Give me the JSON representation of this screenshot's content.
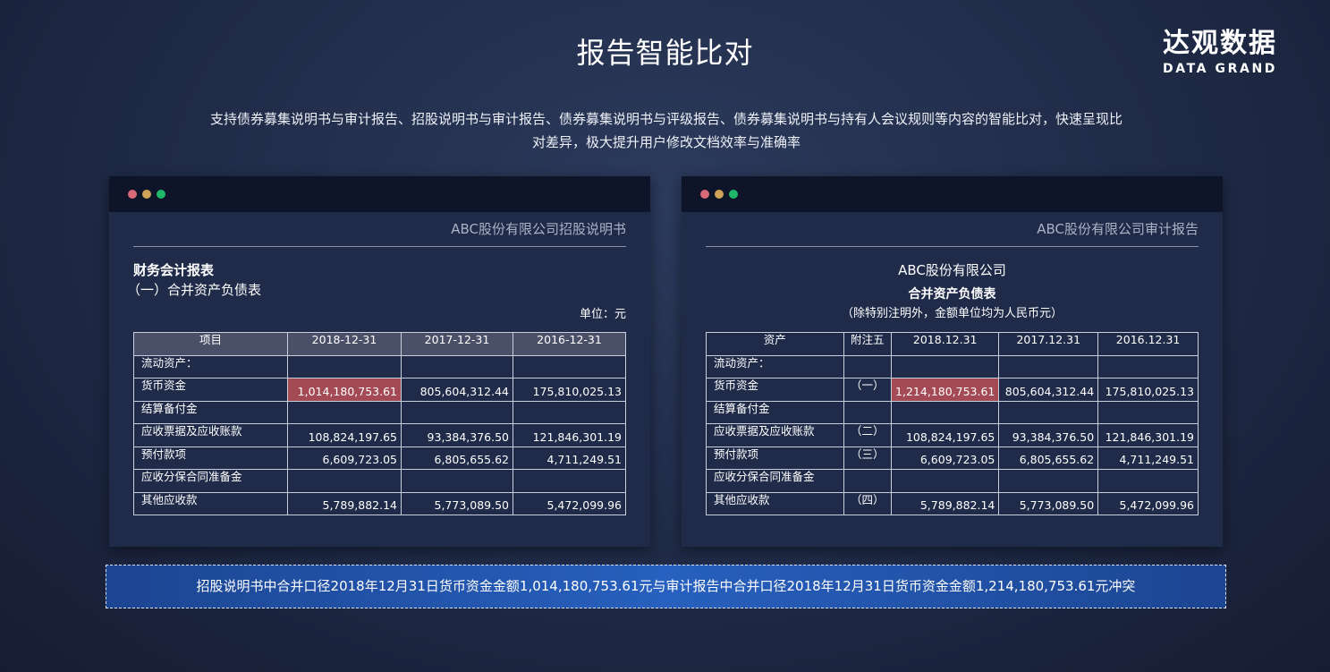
{
  "header": {
    "title": "报告智能比对",
    "subtitle": "支持债券募集说明书与审计报告、招股说明书与审计报告、债券募集说明书与评级报告、债券募集说明书与持有人会议规则等内容的智能比对，快速呈现比对差异，极大提升用户修改文档效率与准确率"
  },
  "logo": {
    "cn": "达观数据",
    "en": "DATA GRAND"
  },
  "colors": {
    "dot_red": "#d9687a",
    "dot_yellow": "#d1a256",
    "dot_green": "#1fb86a",
    "highlight": "#a34a55",
    "banner": "#2760be"
  },
  "left": {
    "doc_name": "ABC股份有限公司招股说明书",
    "heading": "财务会计报表",
    "subheading": "（一）合并资产负债表",
    "unit": "单位：元",
    "columns": [
      "项目",
      "2018-12-31",
      "2017-12-31",
      "2016-12-31"
    ],
    "rows": [
      [
        "流动资产：",
        "",
        "",
        ""
      ],
      [
        "货币资金",
        "1,014,180,753.61",
        "805,604,312.44",
        "175,810,025.13"
      ],
      [
        "结算备付金",
        "",
        "",
        ""
      ],
      [
        "应收票据及应收账款",
        "108,824,197.65",
        "93,384,376.50",
        "121,846,301.19"
      ],
      [
        "预付款项",
        "6,609,723.05",
        "6,805,655.62",
        "4,711,249.51"
      ],
      [
        "应收分保合同准备金",
        "",
        "",
        ""
      ],
      [
        "其他应收款",
        "5,789,882.14",
        "5,773,089.50",
        "5,472,099.96"
      ]
    ]
  },
  "right": {
    "doc_name": "ABC股份有限公司审计报告",
    "company": "ABC股份有限公司",
    "table_title": "合并资产负债表",
    "note": "（除特别注明外，金额单位均为人民币元）",
    "columns": [
      "资产",
      "附注五",
      "2018.12.31",
      "2017.12.31",
      "2016.12.31"
    ],
    "rows": [
      [
        "流动资产：",
        "",
        "",
        "",
        ""
      ],
      [
        "货币资金",
        "（一）",
        "1,214,180,753.61",
        "805,604,312.44",
        "175,810,025.13"
      ],
      [
        "结算备付金",
        "",
        "",
        "",
        ""
      ],
      [
        "应收票据及应收账款",
        "（二）",
        "108,824,197.65",
        "93,384,376.50",
        "121,846,301.19"
      ],
      [
        "预付款项",
        "（三）",
        "6,609,723.05",
        "6,805,655.62",
        "4,711,249.51"
      ],
      [
        "应收分保合同准备金",
        "",
        "",
        "",
        ""
      ],
      [
        "其他应收款",
        "（四）",
        "5,789,882.14",
        "5,773,089.50",
        "5,472,099.96"
      ]
    ]
  },
  "banner": {
    "text": "招股说明书中合并口径2018年12月31日货币资金金额1,014,180,753.61元与审计报告中合并口径2018年12月31日货币资金金额1,214,180,753.61元冲突"
  }
}
